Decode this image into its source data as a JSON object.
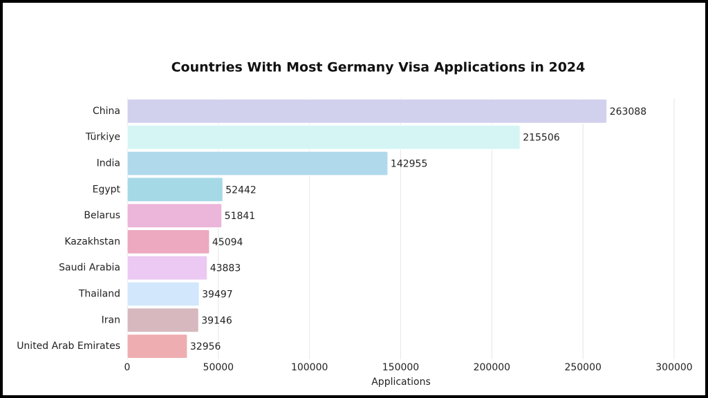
{
  "chart_data": {
    "type": "hbar",
    "title": "Countries With Most Germany Visa Applications in 2024",
    "x_label": "Applications",
    "categories": [
      "China",
      "Türkiye",
      "India",
      "Egypt",
      "Belarus",
      "Kazakhstan",
      "Saudi Arabia",
      "Thailand",
      "Iran",
      "United Arab Emirates"
    ],
    "values": [
      263088,
      215506,
      142955,
      52442,
      51841,
      45094,
      43883,
      39497,
      39146,
      32956
    ],
    "colors": [
      "#d1d1ee",
      "#d5f5f5",
      "#b1d9ec",
      "#a5d9e6",
      "#ecb5da",
      "#eca9bf",
      "#ebc9f2",
      "#d2e7fb",
      "#d6b8be",
      "#eeaeb1"
    ],
    "xlim": [
      0,
      300000
    ],
    "xticks": [
      0,
      50000,
      100000,
      150000,
      200000,
      250000,
      300000
    ],
    "grid": true
  }
}
